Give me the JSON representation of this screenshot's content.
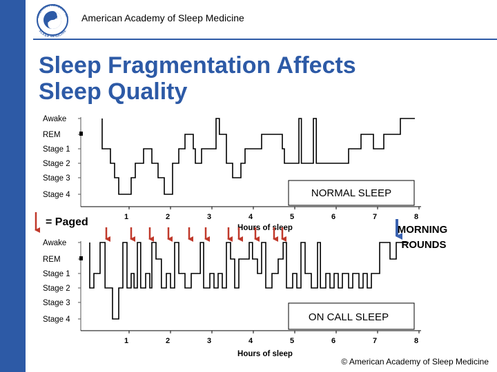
{
  "header": {
    "org_name": "American Academy of Sleep Medicine",
    "logo_text_top": "AMERICAN ACADEMY OF",
    "logo_text_bottom": "SLEEP MEDICINE",
    "logo_center": "SLEEP",
    "logo_center_top": "AASM"
  },
  "title": {
    "line1": "Sleep Fragmentation Affects",
    "line2": "Sleep Quality"
  },
  "legend": {
    "paged_label": "= Paged",
    "morning_label_line1": "MORNING",
    "morning_label_line2": "ROUNDS"
  },
  "footer": {
    "copyright": "© American Academy of Sleep Medicine"
  },
  "colors": {
    "accent": "#2d5aa6",
    "paged_arrow": "#c0392b",
    "morning_arrow": "#3a62b0"
  },
  "chart_data": [
    {
      "type": "line",
      "name": "normal-sleep",
      "label": "NORMAL SLEEP",
      "xlabel": "Hours of sleep",
      "x_ticks": [
        1,
        2,
        3,
        4,
        5,
        6,
        7,
        8
      ],
      "xlim": [
        0,
        8
      ],
      "stages": [
        "Awake",
        "REM",
        "Stage 1",
        "Stage 2",
        "Stage 3",
        "Stage 4"
      ],
      "points": [
        [
          0.35,
          0
        ],
        [
          0.35,
          2
        ],
        [
          0.55,
          2
        ],
        [
          0.55,
          3
        ],
        [
          0.65,
          3
        ],
        [
          0.65,
          4
        ],
        [
          0.75,
          4
        ],
        [
          0.75,
          5
        ],
        [
          1.05,
          5
        ],
        [
          1.05,
          4
        ],
        [
          1.15,
          4
        ],
        [
          1.15,
          3
        ],
        [
          1.35,
          3
        ],
        [
          1.35,
          2
        ],
        [
          1.55,
          2
        ],
        [
          1.55,
          3
        ],
        [
          1.7,
          3
        ],
        [
          1.7,
          4
        ],
        [
          1.85,
          4
        ],
        [
          1.85,
          5
        ],
        [
          2.05,
          5
        ],
        [
          2.05,
          3
        ],
        [
          2.2,
          3
        ],
        [
          2.2,
          2
        ],
        [
          2.35,
          2
        ],
        [
          2.35,
          1
        ],
        [
          2.55,
          1
        ],
        [
          2.55,
          2
        ],
        [
          2.6,
          2
        ],
        [
          2.6,
          3
        ],
        [
          2.75,
          3
        ],
        [
          2.75,
          2
        ],
        [
          3.1,
          2
        ],
        [
          3.1,
          0
        ],
        [
          3.18,
          0
        ],
        [
          3.18,
          1
        ],
        [
          3.35,
          1
        ],
        [
          3.35,
          3
        ],
        [
          3.5,
          3
        ],
        [
          3.5,
          4
        ],
        [
          3.7,
          4
        ],
        [
          3.7,
          3
        ],
        [
          3.8,
          3
        ],
        [
          3.8,
          2
        ],
        [
          4.2,
          2
        ],
        [
          4.2,
          1
        ],
        [
          4.7,
          1
        ],
        [
          4.7,
          2
        ],
        [
          4.75,
          2
        ],
        [
          4.75,
          3
        ],
        [
          5.1,
          3
        ],
        [
          5.1,
          0
        ],
        [
          5.16,
          0
        ],
        [
          5.16,
          3
        ],
        [
          5.45,
          3
        ],
        [
          5.45,
          0
        ],
        [
          5.52,
          0
        ],
        [
          5.52,
          3
        ],
        [
          6.3,
          3
        ],
        [
          6.3,
          2
        ],
        [
          6.6,
          2
        ],
        [
          6.6,
          1
        ],
        [
          6.9,
          1
        ],
        [
          6.9,
          2
        ],
        [
          7.15,
          2
        ],
        [
          7.15,
          1
        ],
        [
          7.55,
          1
        ],
        [
          7.55,
          0
        ],
        [
          7.9,
          0
        ]
      ]
    },
    {
      "type": "line",
      "name": "on-call-sleep",
      "label": "ON CALL SLEEP",
      "xlabel": "Hours of sleep",
      "x_ticks": [
        1,
        2,
        3,
        4,
        5,
        6,
        7,
        8
      ],
      "xlim": [
        0,
        8
      ],
      "stages": [
        "Awake",
        "REM",
        "Stage 1",
        "Stage 2",
        "Stage 3",
        "Stage 4"
      ],
      "points": [
        [
          0.05,
          0
        ],
        [
          0.05,
          3
        ],
        [
          0.15,
          3
        ],
        [
          0.15,
          2
        ],
        [
          0.3,
          2
        ],
        [
          0.3,
          0
        ],
        [
          0.42,
          0
        ],
        [
          0.42,
          3
        ],
        [
          0.6,
          3
        ],
        [
          0.6,
          5
        ],
        [
          0.75,
          5
        ],
        [
          0.75,
          3
        ],
        [
          0.85,
          3
        ],
        [
          0.85,
          0
        ],
        [
          0.95,
          0
        ],
        [
          0.95,
          3
        ],
        [
          1.05,
          3
        ],
        [
          1.05,
          2
        ],
        [
          1.12,
          2
        ],
        [
          1.12,
          3
        ],
        [
          1.2,
          3
        ],
        [
          1.2,
          0
        ],
        [
          1.28,
          0
        ],
        [
          1.28,
          3
        ],
        [
          1.4,
          3
        ],
        [
          1.4,
          2
        ],
        [
          1.5,
          2
        ],
        [
          1.5,
          3
        ],
        [
          1.55,
          3
        ],
        [
          1.55,
          0
        ],
        [
          1.65,
          0
        ],
        [
          1.65,
          1
        ],
        [
          1.78,
          1
        ],
        [
          1.78,
          3
        ],
        [
          1.9,
          3
        ],
        [
          1.9,
          2
        ],
        [
          2.0,
          2
        ],
        [
          2.0,
          3
        ],
        [
          2.1,
          3
        ],
        [
          2.1,
          0
        ],
        [
          2.2,
          0
        ],
        [
          2.2,
          2
        ],
        [
          2.35,
          2
        ],
        [
          2.35,
          3
        ],
        [
          2.5,
          3
        ],
        [
          2.5,
          2
        ],
        [
          2.72,
          2
        ],
        [
          2.72,
          0
        ],
        [
          2.8,
          0
        ],
        [
          2.8,
          3
        ],
        [
          2.95,
          3
        ],
        [
          2.95,
          2
        ],
        [
          3.05,
          2
        ],
        [
          3.05,
          3
        ],
        [
          3.15,
          3
        ],
        [
          3.15,
          2
        ],
        [
          3.25,
          2
        ],
        [
          3.25,
          3
        ],
        [
          3.35,
          3
        ],
        [
          3.35,
          0
        ],
        [
          3.45,
          0
        ],
        [
          3.45,
          1
        ],
        [
          3.55,
          1
        ],
        [
          3.55,
          3
        ],
        [
          3.65,
          3
        ],
        [
          3.65,
          1
        ],
        [
          3.9,
          1
        ],
        [
          3.9,
          0
        ],
        [
          3.98,
          0
        ],
        [
          3.98,
          1
        ],
        [
          4.1,
          1
        ],
        [
          4.1,
          2
        ],
        [
          4.2,
          2
        ],
        [
          4.2,
          0
        ],
        [
          4.3,
          0
        ],
        [
          4.3,
          3
        ],
        [
          4.45,
          3
        ],
        [
          4.45,
          2
        ],
        [
          4.6,
          2
        ],
        [
          4.6,
          1
        ],
        [
          4.72,
          1
        ],
        [
          4.72,
          0
        ],
        [
          4.8,
          0
        ],
        [
          4.8,
          3
        ],
        [
          4.95,
          3
        ],
        [
          4.95,
          2
        ],
        [
          5.05,
          2
        ],
        [
          5.05,
          3
        ],
        [
          5.15,
          3
        ],
        [
          5.15,
          0
        ],
        [
          5.25,
          0
        ],
        [
          5.25,
          2
        ],
        [
          5.4,
          2
        ],
        [
          5.4,
          3
        ],
        [
          5.55,
          3
        ],
        [
          5.55,
          0
        ],
        [
          5.62,
          0
        ],
        [
          5.62,
          3
        ],
        [
          5.75,
          3
        ],
        [
          5.75,
          2
        ],
        [
          5.85,
          2
        ],
        [
          5.85,
          3
        ],
        [
          5.95,
          3
        ],
        [
          5.95,
          2
        ],
        [
          6.05,
          2
        ],
        [
          6.05,
          3
        ],
        [
          6.15,
          3
        ],
        [
          6.15,
          2
        ],
        [
          6.3,
          2
        ],
        [
          6.3,
          3
        ],
        [
          6.4,
          3
        ],
        [
          6.4,
          2
        ],
        [
          6.55,
          2
        ],
        [
          6.55,
          3
        ],
        [
          6.65,
          3
        ],
        [
          6.65,
          2
        ],
        [
          6.75,
          2
        ],
        [
          6.75,
          3
        ],
        [
          6.85,
          3
        ],
        [
          6.85,
          2
        ],
        [
          7.05,
          2
        ],
        [
          7.05,
          0
        ],
        [
          7.3,
          0
        ],
        [
          7.3,
          1
        ],
        [
          7.45,
          1
        ],
        [
          7.45,
          0
        ],
        [
          7.75,
          0
        ]
      ]
    }
  ],
  "paged_events_hours": [
    0.25,
    0.85,
    1.3,
    1.75,
    2.25,
    2.65,
    3.2,
    3.45,
    3.85,
    4.3,
    4.5
  ],
  "morning_rounds_hours": [
    7.4
  ]
}
